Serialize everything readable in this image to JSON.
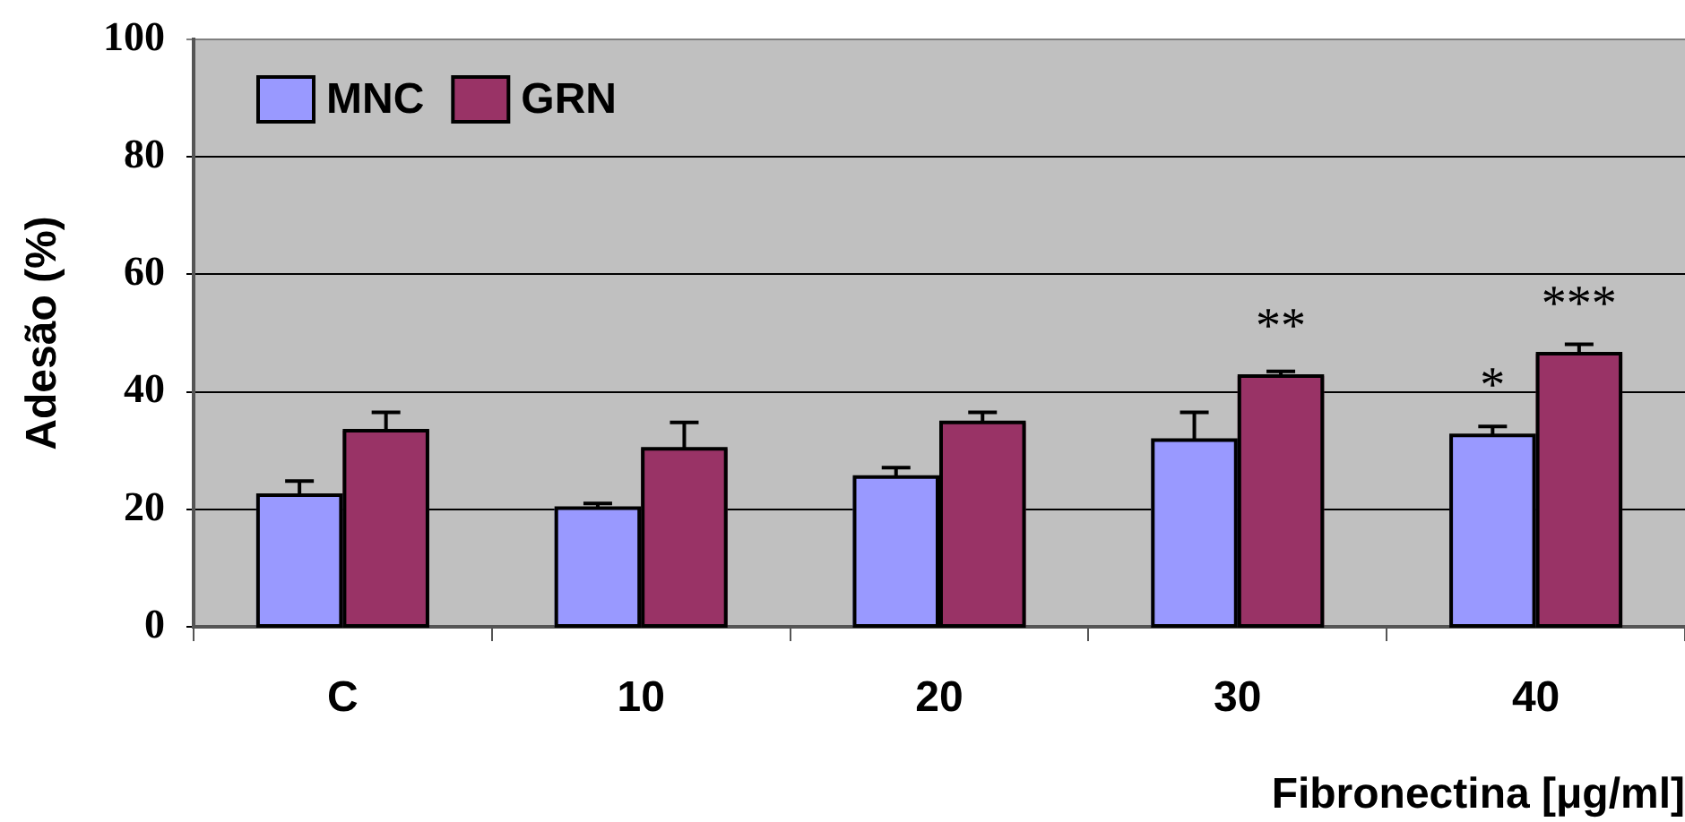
{
  "chart_data": {
    "type": "bar",
    "xlabel": "Fibronectina [μg/ml]",
    "ylabel": "Adesão (%)",
    "categories": [
      "C",
      "10",
      "20",
      "30",
      "40"
    ],
    "series": [
      {
        "name": "MNC",
        "color": "#9999ff",
        "values": [
          22.4,
          20.2,
          25.5,
          31.8,
          32.6
        ],
        "errors": [
          [
            22.4,
            24.8
          ],
          [
            20.2,
            21.0
          ],
          [
            25.5,
            27.1
          ],
          [
            31.8,
            36.5
          ],
          [
            32.6,
            34.1
          ]
        ]
      },
      {
        "name": "GRN",
        "color": "#993366",
        "values": [
          33.4,
          30.3,
          34.8,
          42.7,
          46.5
        ],
        "errors": [
          [
            33.4,
            36.5
          ],
          [
            30.3,
            34.8
          ],
          [
            34.8,
            36.5
          ],
          [
            42.7,
            43.5
          ],
          [
            46.5,
            48.1
          ]
        ]
      }
    ],
    "ylim": [
      0,
      100
    ],
    "yticks": [
      0,
      20,
      40,
      60,
      80,
      100
    ],
    "annotations": [
      {
        "text": "**",
        "x": "30",
        "y": 42.7
      },
      {
        "text": "*",
        "x": "40",
        "y": 32.6
      },
      {
        "text": "***",
        "x": "40",
        "y": 46.5
      }
    ],
    "grid": "y",
    "legend": "top left"
  }
}
